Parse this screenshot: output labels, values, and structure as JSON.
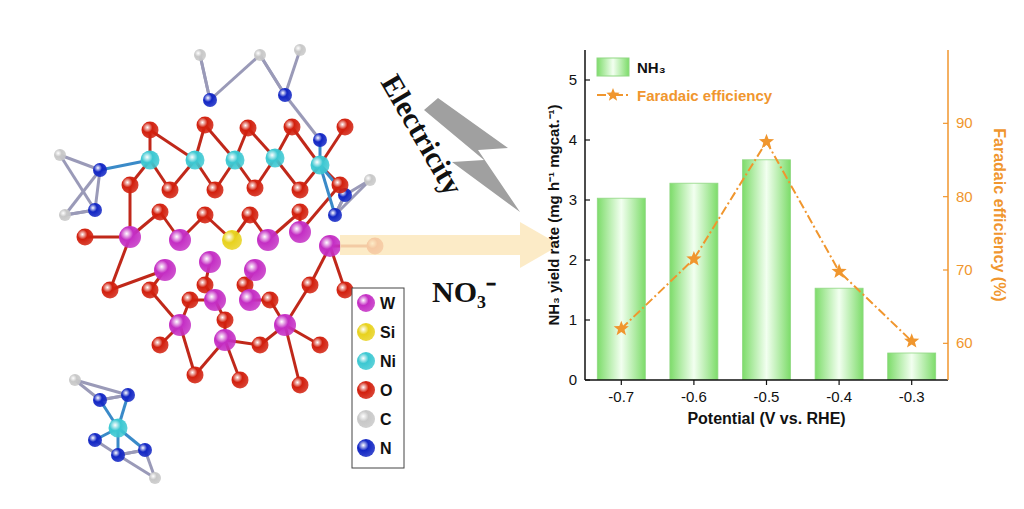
{
  "diagram": {
    "elements": [
      {
        "symbol": "W",
        "color": "#c42ec4"
      },
      {
        "symbol": "Si",
        "color": "#e8d21e"
      },
      {
        "symbol": "Ni",
        "color": "#3cc8d2"
      },
      {
        "symbol": "O",
        "color": "#d2200e"
      },
      {
        "symbol": "C",
        "color": "#c8c8c8"
      },
      {
        "symbol": "N",
        "color": "#1226c4"
      }
    ],
    "energy_label": "Electricity",
    "reactant_label": "NO₃⁻"
  },
  "chart_data": {
    "type": "bar",
    "categories": [
      "-0.7",
      "-0.6",
      "-0.5",
      "-0.4",
      "-0.3"
    ],
    "x_label": "Potential (V vs. RHE)",
    "y_label": "NH₃ yield rate (mg h⁻¹ mgcat.⁻¹)",
    "y2_label": "Faradaic efficiency (%)",
    "ylim": [
      0,
      5.5
    ],
    "yticks": [
      0,
      1,
      2,
      3,
      4,
      5
    ],
    "y2lim": [
      55,
      100
    ],
    "y2ticks": [
      60,
      70,
      80,
      90
    ],
    "legend": "top-left",
    "series": [
      {
        "name": "NH₃",
        "type": "bar",
        "color": "#7ddc6a",
        "values": [
          3.03,
          3.28,
          3.67,
          1.53,
          0.45
        ]
      },
      {
        "name": "Faradaic efficiency",
        "type": "line",
        "axis": "y2",
        "color": "#f0962e",
        "marker": "star",
        "line_style": "dashdot",
        "values": [
          62.0,
          71.5,
          87.5,
          69.8,
          60.3
        ]
      }
    ]
  }
}
